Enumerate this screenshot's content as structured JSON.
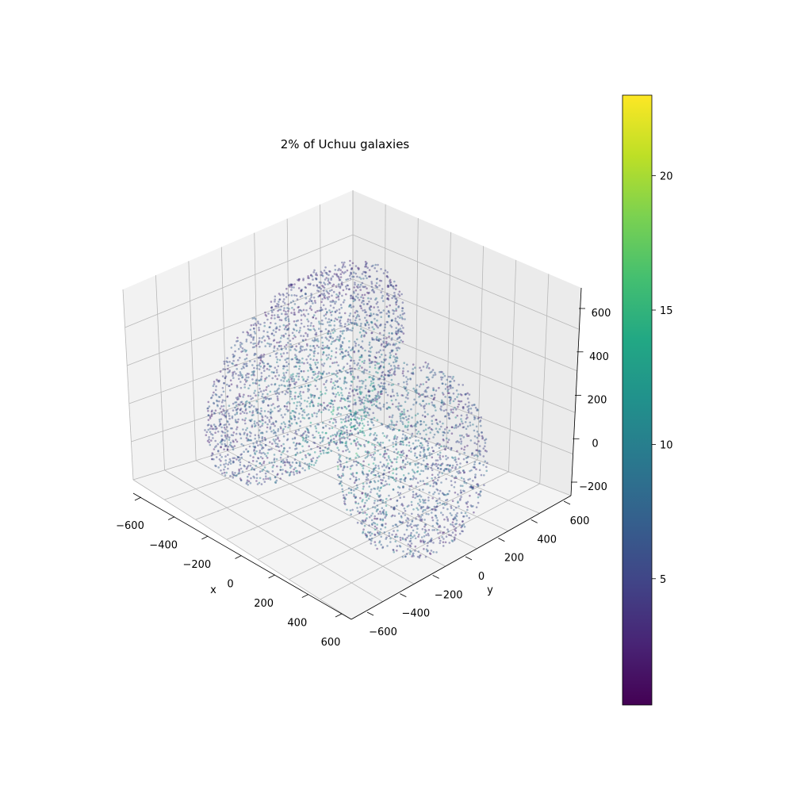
{
  "chart_data": {
    "type": "scatter",
    "projection": "3d",
    "title": "2% of Uchuu galaxies",
    "xlabel": "x",
    "ylabel": "y",
    "zlabel": "",
    "xlim": [
      -700,
      700
    ],
    "ylim": [
      -700,
      700
    ],
    "zlim": [
      -300,
      700
    ],
    "x_ticks": [
      -600,
      -400,
      -200,
      0,
      200,
      400,
      600
    ],
    "y_ticks": [
      -600,
      -400,
      -200,
      0,
      200,
      400,
      600
    ],
    "z_ticks": [
      -200,
      0,
      200,
      400,
      600
    ],
    "x_tick_labels": [
      "−600",
      "−400",
      "−200",
      "0",
      "200",
      "400",
      "600"
    ],
    "y_tick_labels": [
      "−600",
      "−400",
      "−200",
      "0",
      "200",
      "400",
      "600"
    ],
    "z_tick_labels": [
      "−200",
      "0",
      "200",
      "400",
      "600"
    ],
    "grid": true,
    "colormap": "viridis",
    "colorbar": {
      "range": [
        0.3,
        23
      ],
      "ticks": [
        5,
        10,
        15,
        20
      ],
      "tick_labels": [
        "5",
        "10",
        "15",
        "20"
      ]
    },
    "clusters": [
      {
        "name": "",
        "description_pts": "upper-left lobe",
        "x_range": [
          -700,
          -150
        ],
        "y_range": [
          -200,
          450
        ],
        "z_range": [
          -50,
          650
        ]
      },
      {
        "name": "",
        "description_pts": "lower-right lobe",
        "x_range": [
          150,
          650
        ],
        "y_range": [
          -300,
          300
        ],
        "z_range": [
          -350,
          300
        ]
      }
    ],
    "colors": {
      "pane": "#f2f2f2",
      "pane_dark": "#ebebeb",
      "grid": "#b0b0b0"
    }
  }
}
